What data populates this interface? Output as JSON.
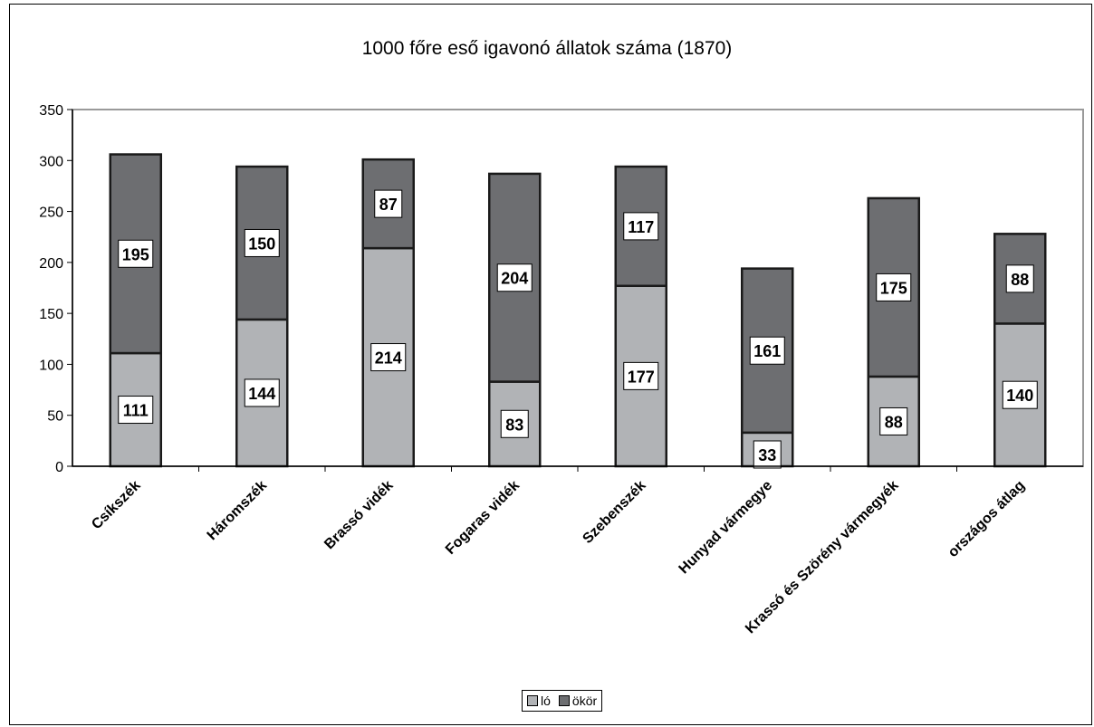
{
  "chart_data": {
    "type": "bar",
    "stacked": true,
    "title": "1000 főre eső igavonó állatok száma (1870)",
    "xlabel": "",
    "ylabel": "",
    "categories": [
      "Csíkszék",
      "Háromszék",
      "Brassó vidék",
      "Fogaras vidék",
      "Szebenszék",
      "Hunyad vármegye",
      "Krassó és Szörény vármegyék",
      "országos átlag"
    ],
    "series": [
      {
        "name": "ló",
        "color": "#b1b3b6",
        "values": [
          111,
          144,
          214,
          83,
          177,
          33,
          88,
          140
        ]
      },
      {
        "name": "ökör",
        "color": "#6d6e71",
        "values": [
          195,
          150,
          87,
          204,
          117,
          161,
          175,
          88
        ]
      }
    ],
    "ylim": [
      0,
      350
    ],
    "yticks": [
      0,
      50,
      100,
      150,
      200,
      250,
      300,
      350
    ],
    "grid": false,
    "legend_position": "bottom"
  }
}
